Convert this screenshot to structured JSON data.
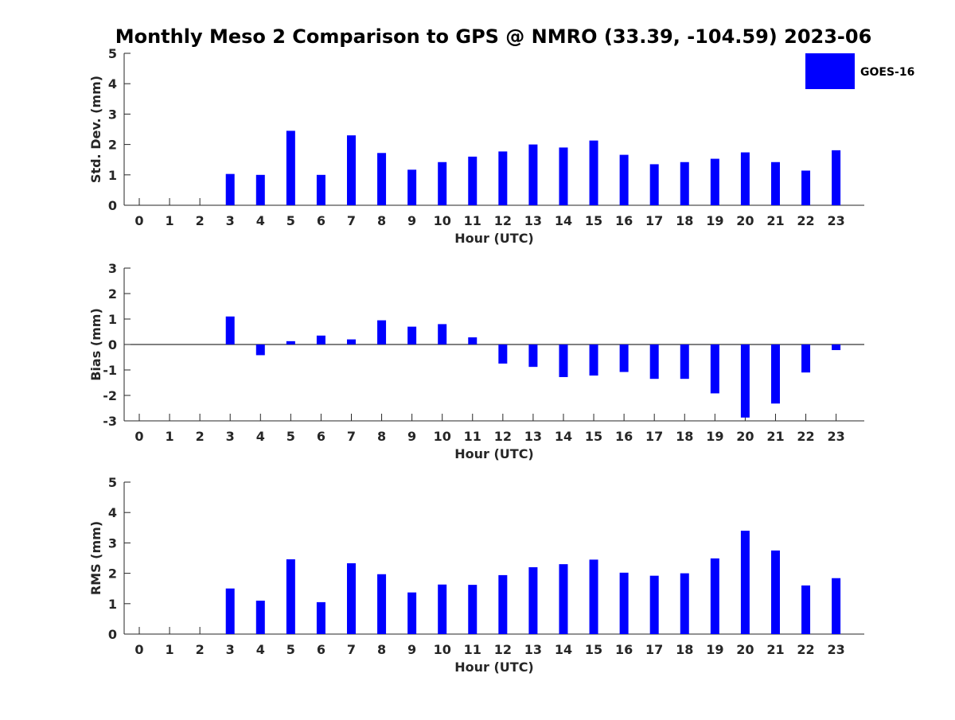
{
  "title": "Monthly Meso 2 Comparison to GPS @ NMRO (33.39, -104.59) 2023-06",
  "legend": {
    "label": "GOES-16",
    "color": "#0000ff",
    "placement": "top-right"
  },
  "chart_data": [
    {
      "type": "bar",
      "title": "Monthly Meso 2 Comparison to GPS @ NMRO (33.39, -104.59) 2023-06",
      "xlabel": "Hour (UTC)",
      "ylabel": "Std. Dev. (mm)",
      "ylim": [
        0,
        5
      ],
      "yticks": [
        0,
        1,
        2,
        3,
        4,
        5
      ],
      "categories": [
        "0",
        "1",
        "2",
        "3",
        "4",
        "5",
        "6",
        "7",
        "8",
        "9",
        "10",
        "11",
        "12",
        "13",
        "14",
        "15",
        "16",
        "17",
        "18",
        "19",
        "20",
        "21",
        "22",
        "23"
      ],
      "series": [
        {
          "name": "GOES-16",
          "values": [
            null,
            null,
            null,
            1.03,
            1.0,
            2.45,
            1.0,
            2.3,
            1.72,
            1.17,
            1.42,
            1.6,
            1.77,
            2.0,
            1.9,
            2.13,
            1.66,
            1.35,
            1.42,
            1.53,
            1.74,
            1.42,
            1.14,
            1.81
          ]
        }
      ]
    },
    {
      "type": "bar",
      "xlabel": "Hour (UTC)",
      "ylabel": "Bias (mm)",
      "ylim": [
        -3,
        3
      ],
      "yticks": [
        -3,
        -2,
        -1,
        0,
        1,
        2,
        3
      ],
      "categories": [
        "0",
        "1",
        "2",
        "3",
        "4",
        "5",
        "6",
        "7",
        "8",
        "9",
        "10",
        "11",
        "12",
        "13",
        "14",
        "15",
        "16",
        "17",
        "18",
        "19",
        "20",
        "21",
        "22",
        "23"
      ],
      "series": [
        {
          "name": "GOES-16",
          "values": [
            null,
            null,
            null,
            1.1,
            -0.42,
            0.13,
            0.35,
            0.2,
            0.95,
            0.7,
            0.8,
            0.28,
            -0.75,
            -0.88,
            -1.28,
            -1.22,
            -1.08,
            -1.35,
            -1.35,
            -1.92,
            -2.87,
            -2.32,
            -1.1,
            -0.22
          ]
        }
      ]
    },
    {
      "type": "bar",
      "xlabel": "Hour (UTC)",
      "ylabel": "RMS (mm)",
      "ylim": [
        0,
        5
      ],
      "yticks": [
        0,
        1,
        2,
        3,
        4,
        5
      ],
      "categories": [
        "0",
        "1",
        "2",
        "3",
        "4",
        "5",
        "6",
        "7",
        "8",
        "9",
        "10",
        "11",
        "12",
        "13",
        "14",
        "15",
        "16",
        "17",
        "18",
        "19",
        "20",
        "21",
        "22",
        "23"
      ],
      "series": [
        {
          "name": "GOES-16",
          "values": [
            null,
            null,
            null,
            1.5,
            1.1,
            2.46,
            1.05,
            2.33,
            1.97,
            1.37,
            1.63,
            1.62,
            1.94,
            2.2,
            2.3,
            2.45,
            2.02,
            1.92,
            2.0,
            2.49,
            3.4,
            2.75,
            1.6,
            1.84
          ]
        }
      ]
    }
  ]
}
